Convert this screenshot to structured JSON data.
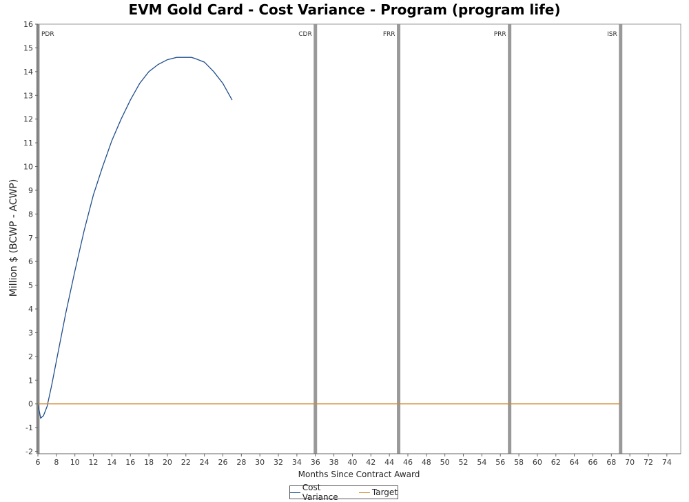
{
  "colors": {
    "cost_variance": "#1f4e8c",
    "target": "#d08a30",
    "milestone": "#999999"
  },
  "chart_data": {
    "type": "line",
    "title": "EVM Gold Card - Cost Variance - Program (program life)",
    "xlabel": "Months Since Contract Award",
    "ylabel": "Million $ (BCWP - ACWP)",
    "xlim": [
      6,
      75.5
    ],
    "ylim": [
      -2.1,
      16
    ],
    "x_ticks": [
      6,
      8,
      10,
      12,
      14,
      16,
      18,
      20,
      22,
      24,
      26,
      28,
      30,
      32,
      34,
      36,
      38,
      40,
      42,
      44,
      46,
      48,
      50,
      52,
      54,
      56,
      58,
      60,
      62,
      64,
      66,
      68,
      70,
      72,
      74
    ],
    "y_ticks": [
      -2,
      -1,
      0,
      1,
      2,
      3,
      4,
      5,
      6,
      7,
      8,
      9,
      10,
      11,
      12,
      13,
      14,
      15,
      16
    ],
    "grid": false,
    "legend_position": "bottom-center",
    "series": [
      {
        "name": "Cost Variance",
        "color_key": "cost_variance",
        "x": [
          6.0,
          6.3,
          6.6,
          7.0,
          7.5,
          8.0,
          9.0,
          10.0,
          11.0,
          12.0,
          13.0,
          14.0,
          15.0,
          16.0,
          17.0,
          18.0,
          19.0,
          20.0,
          21.0,
          22.0,
          22.6,
          23.0,
          24.0,
          25.0,
          26.0,
          27.0
        ],
        "y": [
          0.0,
          -0.6,
          -0.5,
          -0.1,
          0.8,
          1.8,
          3.8,
          5.6,
          7.3,
          8.8,
          10.0,
          11.1,
          12.0,
          12.8,
          13.5,
          14.0,
          14.3,
          14.5,
          14.6,
          14.6,
          14.6,
          14.55,
          14.4,
          14.0,
          13.5,
          12.8
        ]
      },
      {
        "name": "Target",
        "color_key": "target",
        "x": [
          6.0,
          69.0
        ],
        "y": [
          0,
          0
        ]
      }
    ],
    "milestones": [
      {
        "label": "PDR",
        "x": 6.0
      },
      {
        "label": "CDR",
        "x": 36.0
      },
      {
        "label": "FRR",
        "x": 45.0
      },
      {
        "label": "PRR",
        "x": 57.0
      },
      {
        "label": "ISR",
        "x": 69.0
      }
    ]
  }
}
